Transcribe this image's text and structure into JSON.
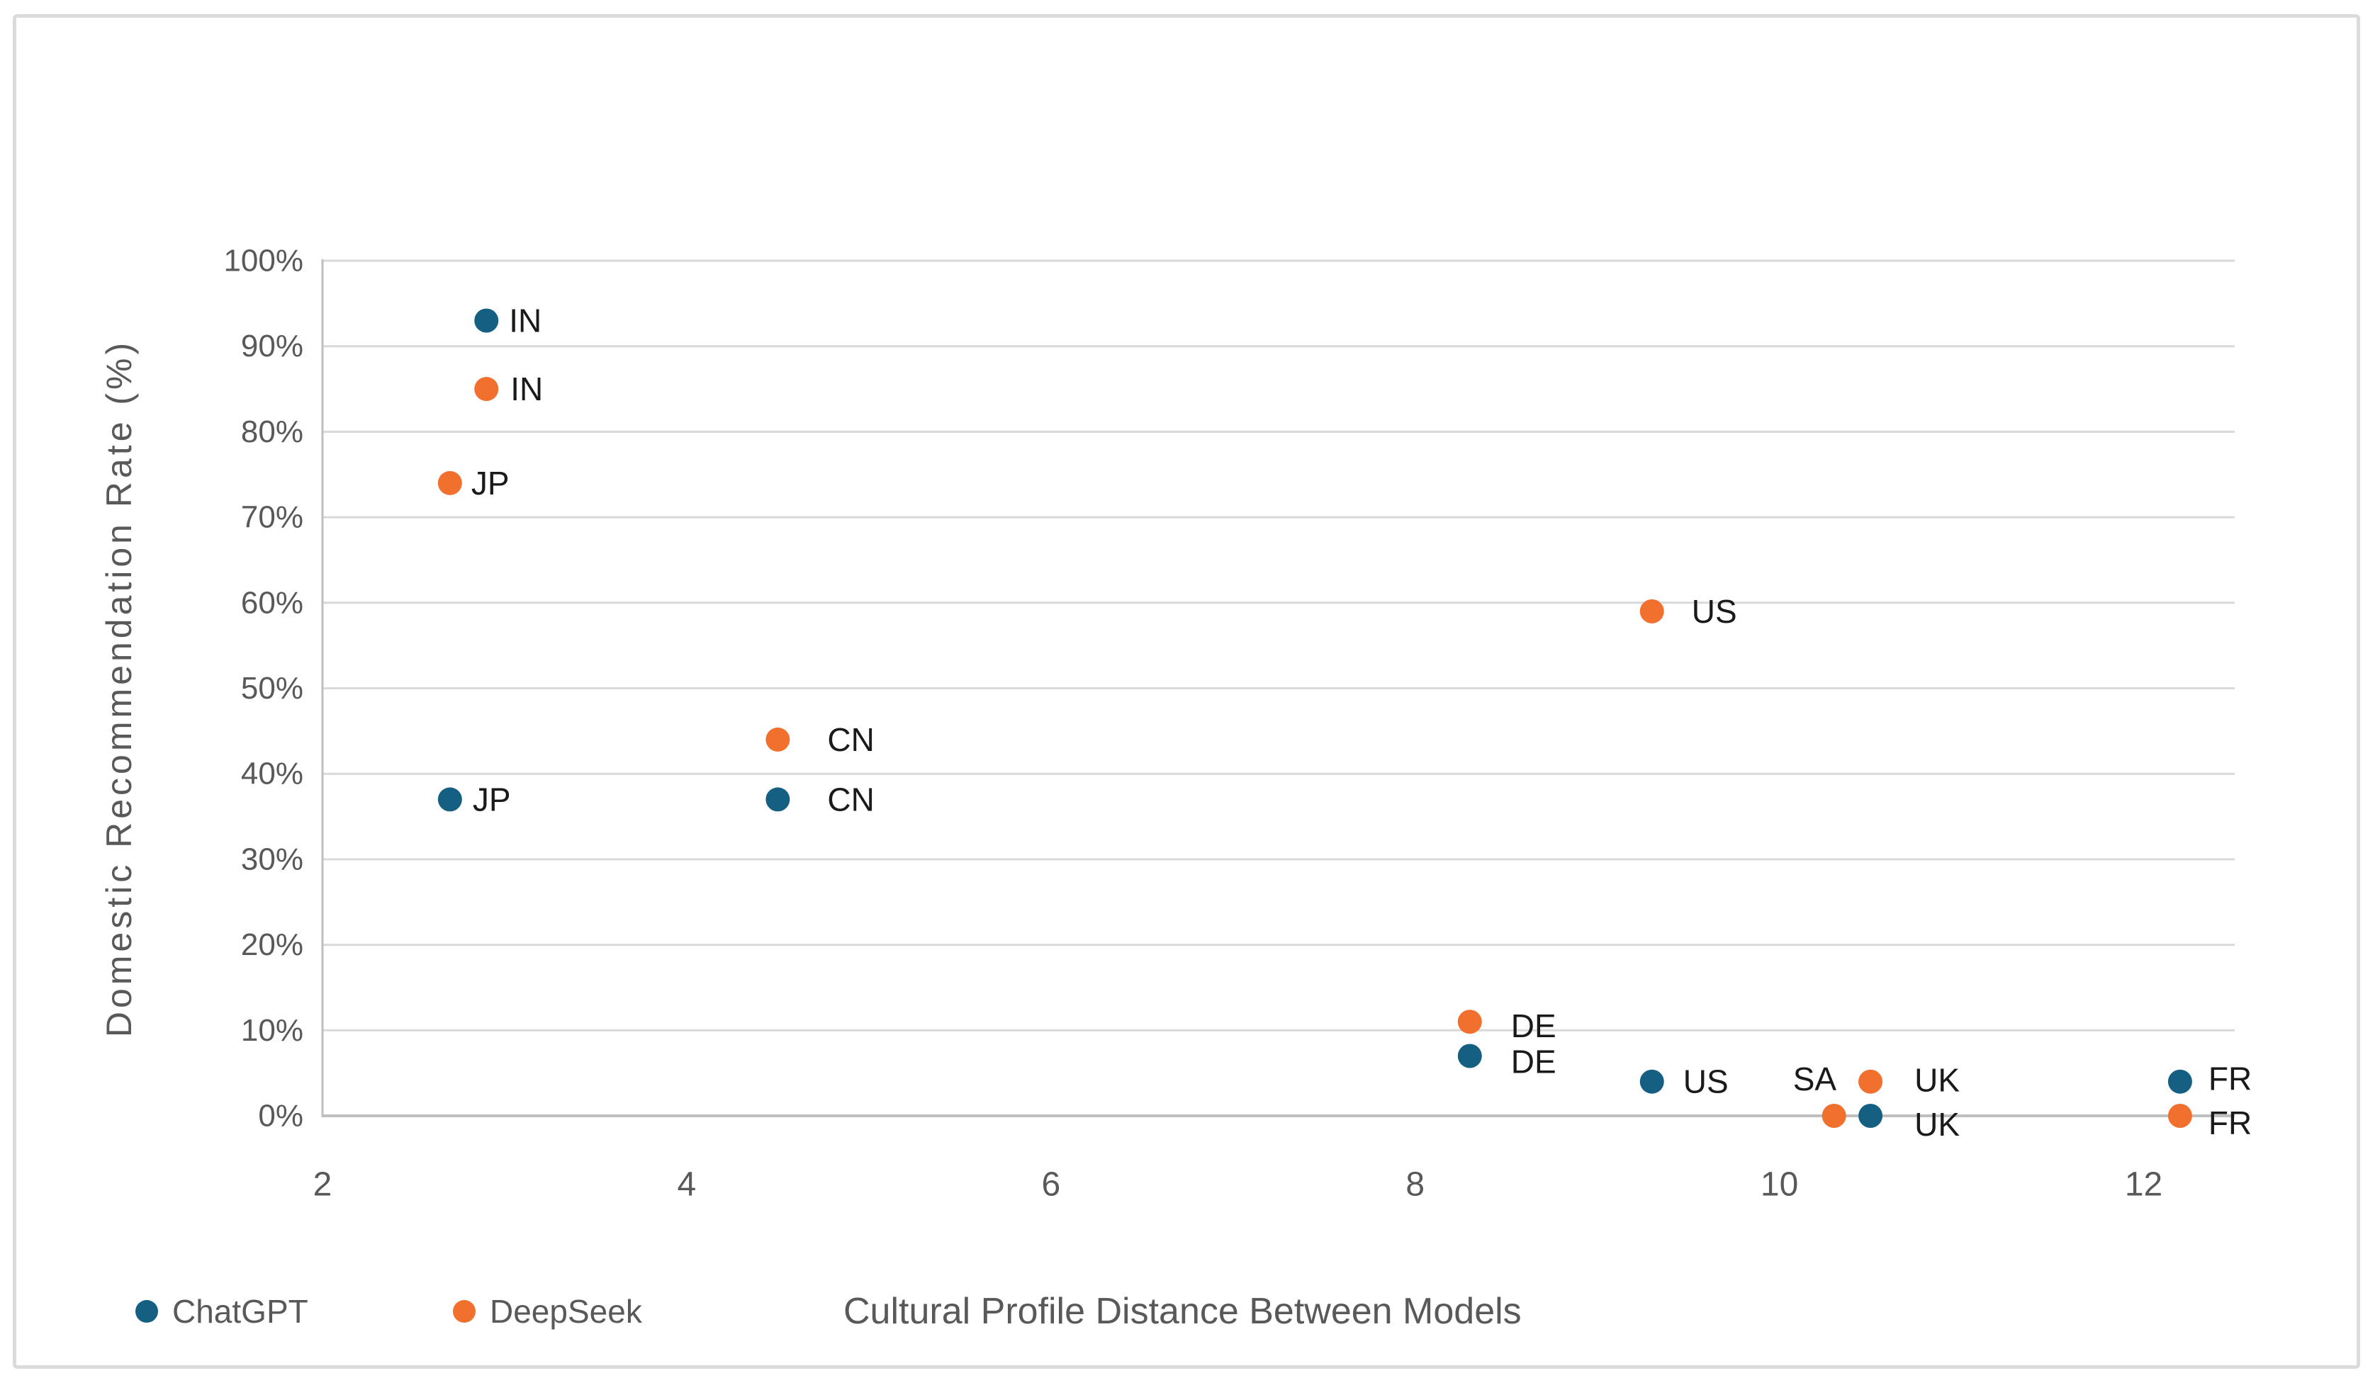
{
  "chart_data": {
    "type": "scatter",
    "title": "",
    "xlabel": "Cultural Profile Distance Between Models",
    "ylabel": "Domestic Recommendation Rate (%)",
    "xlim": [
      2,
      12.5
    ],
    "ylim": [
      0,
      100
    ],
    "x_ticks": [
      2,
      4,
      6,
      8,
      10,
      12
    ],
    "y_ticks": [
      0,
      10,
      20,
      30,
      40,
      50,
      60,
      70,
      80,
      90,
      100
    ],
    "y_tick_suffix": "%",
    "grid": "horizontal",
    "legend_position": "bottom-left",
    "series": [
      {
        "name": "ChatGPT",
        "color": "#156082",
        "points": [
          {
            "label": "IN",
            "x": 2.9,
            "y": 93,
            "label_dx": 32,
            "label_dy": 0
          },
          {
            "label": "JP",
            "x": 2.7,
            "y": 37,
            "label_dx": 32,
            "label_dy": 0
          },
          {
            "label": "CN",
            "x": 4.5,
            "y": 37,
            "label_dx": 70,
            "label_dy": 0
          },
          {
            "label": "DE",
            "x": 8.3,
            "y": 7,
            "label_dx": 58,
            "label_dy": 8
          },
          {
            "label": "US",
            "x": 9.3,
            "y": 4,
            "label_dx": 44,
            "label_dy": 0
          },
          {
            "label": "UK",
            "x": 10.5,
            "y": 0,
            "label_dx": 62,
            "label_dy": 12
          },
          {
            "label": "FR",
            "x": 12.2,
            "y": 4,
            "label_dx": 40,
            "label_dy": -4
          }
        ]
      },
      {
        "name": "DeepSeek",
        "color": "#F1702E",
        "points": [
          {
            "label": "IN",
            "x": 2.9,
            "y": 85,
            "label_dx": 34,
            "label_dy": 0
          },
          {
            "label": "JP",
            "x": 2.7,
            "y": 74,
            "label_dx": 30,
            "label_dy": 0
          },
          {
            "label": "CN",
            "x": 4.5,
            "y": 44,
            "label_dx": 70,
            "label_dy": 0
          },
          {
            "label": "US",
            "x": 9.3,
            "y": 59,
            "label_dx": 56,
            "label_dy": 0
          },
          {
            "label": "DE",
            "x": 8.3,
            "y": 11,
            "label_dx": 58,
            "label_dy": 6
          },
          {
            "label": "SA",
            "x": 10.3,
            "y": 0,
            "label_dx": -58,
            "label_dy": -52
          },
          {
            "label": "UK",
            "x": 10.5,
            "y": 4,
            "label_dx": 62,
            "label_dy": -2
          },
          {
            "label": "FR",
            "x": 12.2,
            "y": 0,
            "label_dx": 40,
            "label_dy": 10
          }
        ]
      }
    ]
  },
  "legend": {
    "items": [
      {
        "label": "ChatGPT",
        "color": "#156082"
      },
      {
        "label": "DeepSeek",
        "color": "#F1702E"
      }
    ]
  },
  "colors": {
    "gridline": "#D9D9D9",
    "axis_line": "#BFBFBF",
    "tick_text": "#595959",
    "axis_title_text": "#595959",
    "data_label_text": "#1A1A1A",
    "background": "#FFFFFF",
    "border": "#DBDBDB"
  }
}
